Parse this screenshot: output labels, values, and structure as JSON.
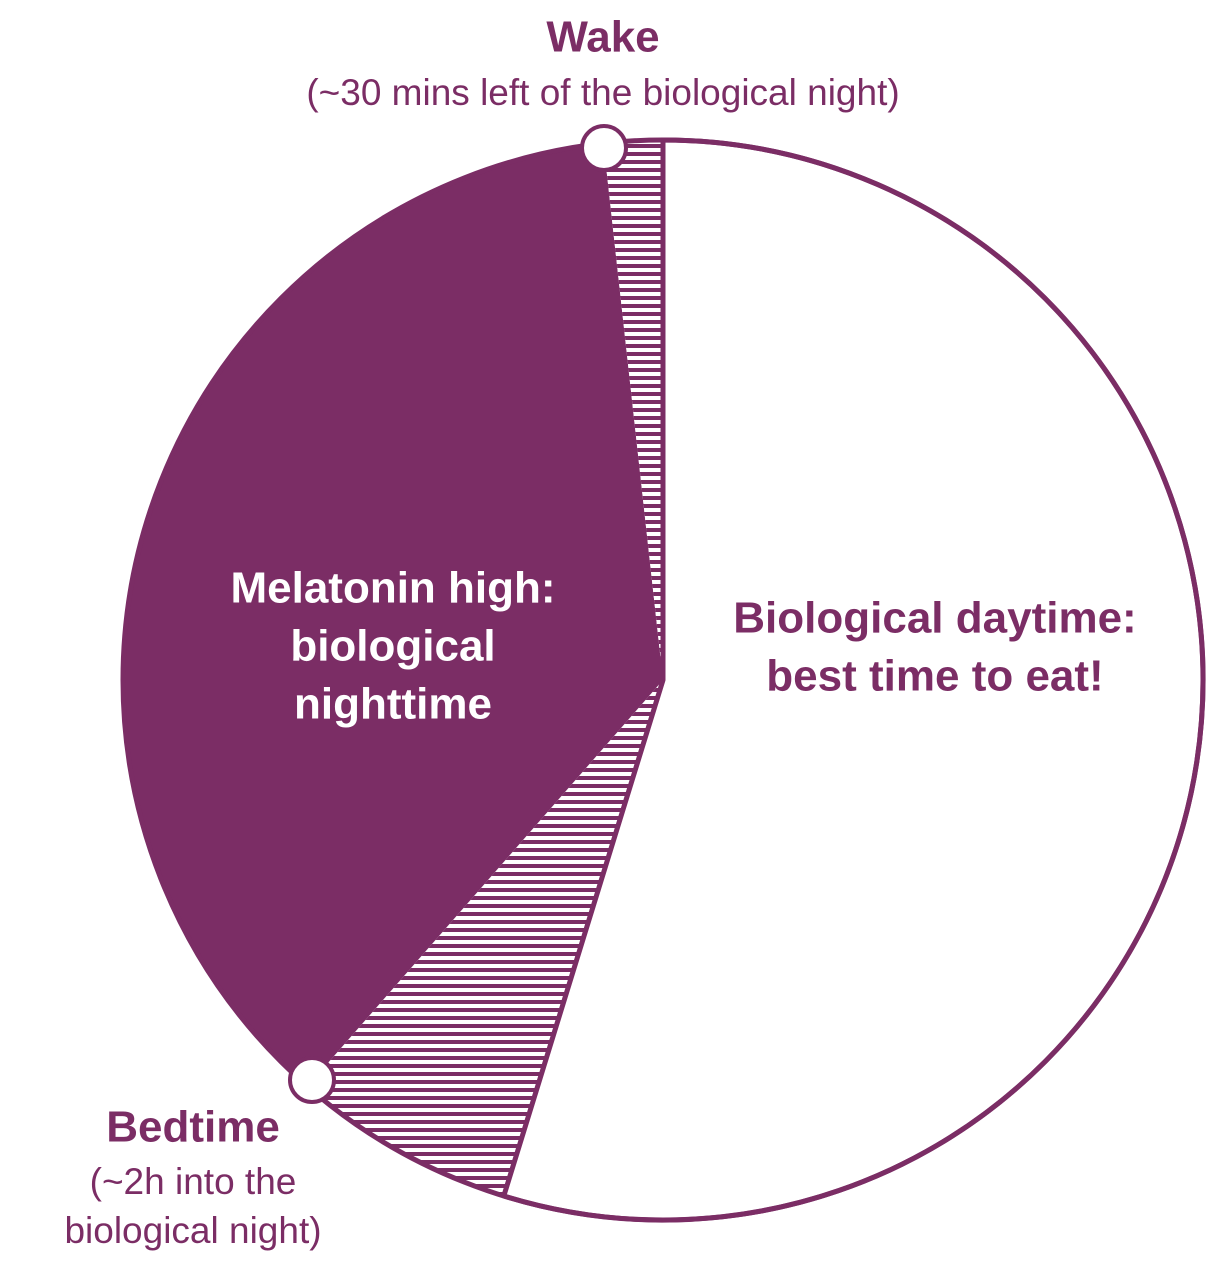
{
  "wake": {
    "title": "Wake",
    "note": "(~30 mins left of the biological night)"
  },
  "bedtime": {
    "title": "Bedtime",
    "note_lines": [
      "(~2h into the",
      "biological night)"
    ]
  },
  "night": {
    "lines": [
      "Melatonin high:",
      "biological",
      "nighttime"
    ]
  },
  "day": {
    "lines": [
      "Biological daytime:",
      "best time to eat!"
    ]
  }
}
